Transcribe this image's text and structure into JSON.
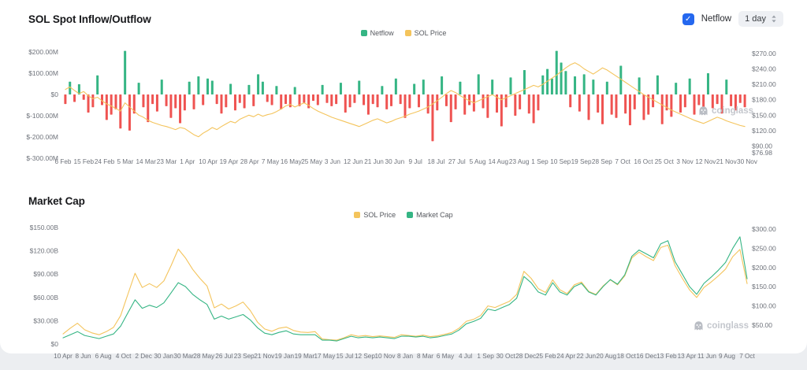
{
  "header": {
    "netflow_label": "Netflow",
    "interval_value": "1 day"
  },
  "watermark": {
    "text": "coinglass"
  },
  "colors": {
    "green": "#35b584",
    "red": "#ef5351",
    "yellow": "#f4c45c",
    "checkbox_blue": "#2568ef"
  },
  "chart_data": [
    {
      "type": "bar",
      "title": "SOL Spot Inflow/Outflow",
      "legend": [
        {
          "label": "Netflow",
          "color": "#35b584"
        },
        {
          "label": "SOL Price",
          "color": "#f4c45c"
        }
      ],
      "left_axis": {
        "labels": [
          "$200.00M",
          "$100.00M",
          "$0",
          "$-100.00M",
          "$-200.00M",
          "$-300.00M"
        ],
        "values": [
          200,
          100,
          0,
          -100,
          -200,
          -300
        ]
      },
      "right_axis": {
        "labels": [
          "$270.00",
          "$240.00",
          "$210.00",
          "$180.00",
          "$150.00",
          "$120.00",
          "$90.00",
          "$76.98"
        ],
        "values": [
          270,
          240,
          210,
          180,
          150,
          120,
          90,
          76.98
        ]
      },
      "ylim_left_musd": [
        -300,
        200
      ],
      "ylim_right_usd": [
        76.98,
        270
      ],
      "x_tick_labels": [
        "6 Feb",
        "15 Feb",
        "24 Feb",
        "5 Mar",
        "14 Mar",
        "23 Mar",
        "1 Apr",
        "10 Apr",
        "19 Apr",
        "28 Apr",
        "7 May",
        "16 May",
        "25 May",
        "3 Jun",
        "12 Jun",
        "21 Jun",
        "30 Jun",
        "9 Jul",
        "18 Jul",
        "27 Jul",
        "5 Aug",
        "14 Aug",
        "23 Aug",
        "1 Sep",
        "10 Sep",
        "19 Sep",
        "28 Sep",
        "7 Oct",
        "16 Oct",
        "25 Oct",
        "3 Nov",
        "12 Nov",
        "21 Nov",
        "30 Nov"
      ],
      "series": {
        "netflow_musd": [
          -45,
          60,
          -35,
          48,
          -25,
          -85,
          -60,
          90,
          -50,
          -120,
          -95,
          -70,
          -160,
          205,
          -170,
          -90,
          55,
          -60,
          -130,
          -45,
          -80,
          70,
          -55,
          -110,
          -65,
          -135,
          -75,
          60,
          -70,
          85,
          -50,
          75,
          65,
          -45,
          -90,
          -60,
          50,
          -75,
          -40,
          -65,
          45,
          -55,
          95,
          60,
          -35,
          -50,
          40,
          -70,
          -45,
          -60,
          35,
          -55,
          -40,
          -65,
          -30,
          -50,
          45,
          -40,
          -55,
          -45,
          55,
          -85,
          -60,
          -40,
          65,
          -50,
          -95,
          -45,
          -60,
          40,
          -70,
          -55,
          75,
          -45,
          -110,
          -65,
          50,
          -60,
          70,
          -90,
          -220,
          -75,
          85,
          -55,
          -130,
          -70,
          60,
          -95,
          -50,
          -80,
          95,
          -65,
          -110,
          70,
          -85,
          -150,
          -60,
          80,
          -100,
          -70,
          115,
          -90,
          -135,
          -75,
          90,
          120,
          75,
          205,
          150,
          110,
          -60,
          85,
          -80,
          95,
          -120,
          70,
          -85,
          -140,
          60,
          -95,
          -110,
          135,
          -90,
          -145,
          -70,
          80,
          -120,
          -95,
          -60,
          90,
          -140,
          -75,
          -105,
          55,
          -85,
          -60,
          75,
          -95,
          -50,
          -80,
          100,
          -65,
          -45,
          -90,
          70,
          -55,
          -75,
          -40,
          -60
        ],
        "sol_price_usd": [
          200,
          205,
          198,
          192,
          196,
          188,
          182,
          185,
          178,
          172,
          168,
          163,
          158,
          174,
          166,
          158,
          150,
          146,
          140,
          136,
          133,
          130,
          128,
          125,
          122,
          126,
          124,
          118,
          112,
          108,
          115,
          120,
          126,
          122,
          128,
          133,
          138,
          135,
          142,
          146,
          150,
          147,
          152,
          148,
          151,
          153,
          157,
          162,
          168,
          171,
          166,
          170,
          174,
          169,
          163,
          158,
          154,
          150,
          146,
          143,
          140,
          137,
          134,
          131,
          128,
          132,
          136,
          140,
          143,
          139,
          135,
          138,
          142,
          145,
          148,
          152,
          155,
          158,
          162,
          166,
          172,
          178,
          185,
          192,
          198,
          194,
          188,
          183,
          178,
          174,
          178,
          182,
          186,
          190,
          185,
          180,
          184,
          188,
          192,
          196,
          200,
          204,
          208,
          205,
          210,
          216,
          222,
          228,
          235,
          242,
          248,
          252,
          247,
          240,
          235,
          230,
          236,
          242,
          238,
          232,
          226,
          220,
          214,
          208,
          202,
          196,
          190,
          185,
          180,
          175,
          170,
          165,
          160,
          156,
          152,
          148,
          144,
          140,
          137,
          134,
          138,
          142,
          146,
          143,
          139,
          136,
          133,
          130,
          128
        ]
      }
    },
    {
      "type": "line",
      "title": "Market Cap",
      "legend": [
        {
          "label": "SOL Price",
          "color": "#f4c45c"
        },
        {
          "label": "Market Cap",
          "color": "#35b584"
        }
      ],
      "left_axis": {
        "labels": [
          "$150.00B",
          "$120.00B",
          "$90.00B",
          "$60.00B",
          "$30.00B",
          "$0"
        ],
        "values": [
          150,
          120,
          90,
          60,
          30,
          0
        ]
      },
      "right_axis": {
        "labels": [
          "$300.00",
          "$250.00",
          "$200.00",
          "$150.00",
          "$100.00",
          "$50.00"
        ],
        "values": [
          300,
          250,
          200,
          150,
          100,
          50
        ]
      },
      "ylim_left_busd": [
        0,
        150
      ],
      "ylim_right_usd": [
        50,
        300
      ],
      "x_tick_labels": [
        "10 Apr",
        "8 Jun",
        "6 Aug",
        "4 Oct",
        "2 Dec",
        "30 Jan",
        "30 Mar",
        "28 May",
        "26 Jul",
        "23 Sep",
        "21 Nov",
        "19 Jan",
        "19 Mar",
        "17 May",
        "15 Jul",
        "12 Sep",
        "10 Nov",
        "8 Jan",
        "8 Mar",
        "6 May",
        "4 Jul",
        "1 Sep",
        "30 Oct",
        "28 Dec",
        "25 Feb",
        "24 Apr",
        "22 Jun",
        "20 Aug",
        "18 Oct",
        "16 Dec",
        "13 Feb",
        "13 Apr",
        "11 Jun",
        "9 Aug",
        "7 Oct"
      ],
      "series": {
        "sol_price_usd": [
          27,
          42,
          55,
          38,
          30,
          25,
          33,
          44,
          75,
          130,
          185,
          148,
          158,
          148,
          165,
          205,
          248,
          225,
          195,
          172,
          152,
          95,
          105,
          92,
          100,
          110,
          88,
          58,
          40,
          34,
          42,
          45,
          36,
          32,
          31,
          33,
          14,
          12,
          11,
          17,
          25,
          21,
          23,
          20,
          22,
          20,
          18,
          25,
          23,
          21,
          24,
          20,
          22,
          26,
          31,
          42,
          60,
          65,
          75,
          100,
          96,
          104,
          112,
          130,
          190,
          172,
          145,
          135,
          168,
          142,
          132,
          155,
          162,
          138,
          130,
          152,
          168,
          155,
          178,
          225,
          240,
          228,
          218,
          252,
          258,
          205,
          172,
          142,
          122,
          148,
          162,
          178,
          196,
          228,
          247,
          158
        ],
        "market_cap_busd": [
          8,
          12,
          16,
          11,
          9,
          7,
          10,
          13,
          23,
          40,
          57,
          46,
          50,
          47,
          53,
          66,
          79,
          74,
          64,
          57,
          51,
          32,
          36,
          32,
          35,
          38,
          31,
          21,
          14,
          12,
          15,
          17,
          13,
          12,
          12,
          12,
          5,
          5,
          4,
          7,
          10,
          8,
          9,
          8,
          9,
          8,
          7,
          10,
          10,
          9,
          10,
          8,
          9,
          11,
          13,
          18,
          26,
          29,
          33,
          45,
          43,
          47,
          51,
          59,
          87,
          79,
          67,
          63,
          79,
          67,
          63,
          74,
          78,
          67,
          63,
          74,
          83,
          77,
          89,
          113,
          121,
          116,
          111,
          129,
          133,
          106,
          90,
          74,
          64,
          78,
          86,
          95,
          105,
          123,
          138,
          84
        ]
      }
    }
  ]
}
